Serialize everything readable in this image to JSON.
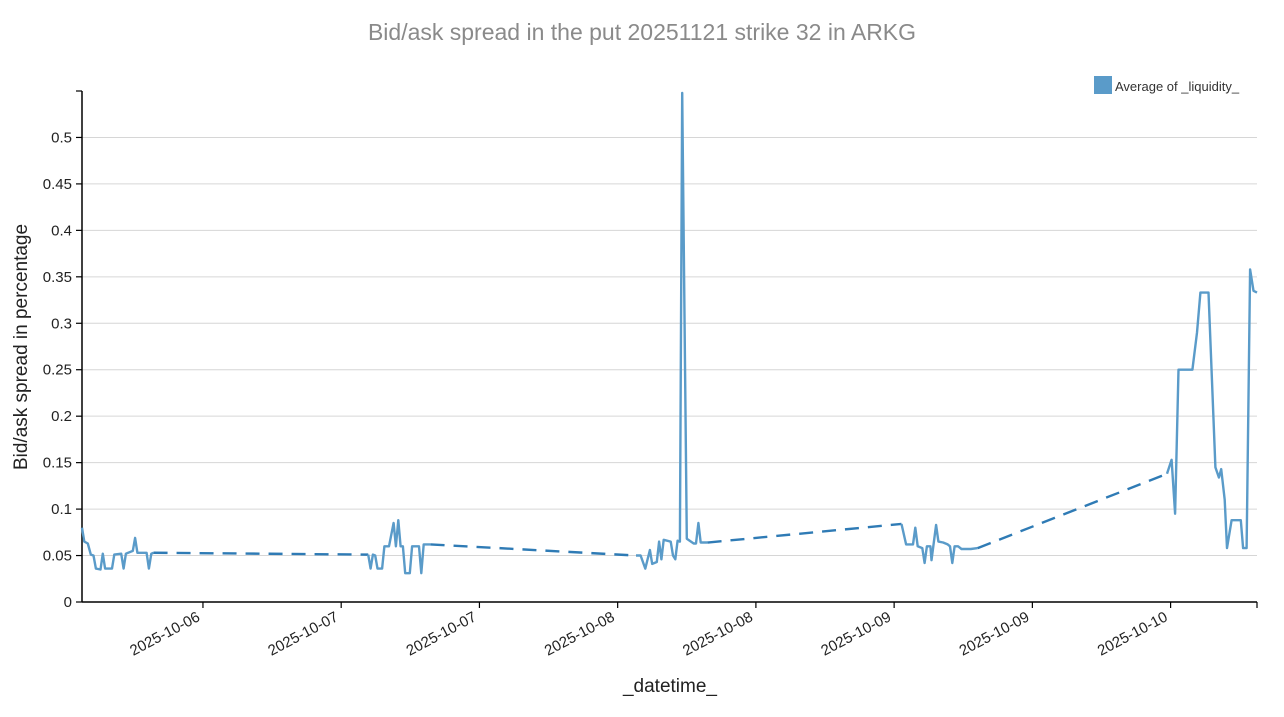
{
  "chart_data": {
    "type": "line",
    "title": "Bid/ask spread in the put 20251121 strike 32 in ARKG",
    "xlabel": "_datetime_",
    "ylabel": "Bid/ask spread in percentage",
    "x_tick_labels": [
      "2025-10-06",
      "2025-10-07",
      "2025-10-07",
      "2025-10-08",
      "2025-10-08",
      "2025-10-09",
      "2025-10-09",
      "2025-10-10"
    ],
    "y_ticks": [
      0,
      0.05,
      0.1,
      0.15,
      0.2,
      0.25,
      0.3,
      0.35,
      0.4,
      0.45,
      0.5
    ],
    "ylim": [
      0,
      0.55
    ],
    "grid": true,
    "legend_position": "top-right",
    "series": [
      {
        "name": "Average of _liquidity_",
        "color": "#5a9bc9",
        "dashed_gap_color": "#2f7bb5",
        "segments": [
          [
            [
              0.0,
              0.08
            ],
            [
              0.1,
              0.065
            ],
            [
              0.25,
              0.063
            ],
            [
              0.38,
              0.051
            ],
            [
              0.5,
              0.05
            ],
            [
              0.6,
              0.036
            ],
            [
              0.8,
              0.035
            ],
            [
              0.9,
              0.052
            ],
            [
              1.0,
              0.036
            ],
            [
              1.3,
              0.036
            ],
            [
              1.4,
              0.051
            ],
            [
              1.7,
              0.052
            ],
            [
              1.8,
              0.036
            ],
            [
              1.9,
              0.052
            ],
            [
              2.2,
              0.055
            ],
            [
              2.3,
              0.069
            ],
            [
              2.4,
              0.053
            ],
            [
              2.6,
              0.053
            ],
            [
              2.8,
              0.053
            ],
            [
              2.9,
              0.036
            ],
            [
              3.0,
              0.052
            ],
            [
              3.1,
              0.053
            ]
          ],
          [
            [
              12.4,
              0.051
            ],
            [
              12.5,
              0.036
            ],
            [
              12.6,
              0.051
            ],
            [
              12.7,
              0.05
            ],
            [
              12.8,
              0.036
            ],
            [
              13.0,
              0.036
            ],
            [
              13.1,
              0.06
            ],
            [
              13.3,
              0.06
            ],
            [
              13.5,
              0.085
            ],
            [
              13.6,
              0.06
            ],
            [
              13.7,
              0.088
            ],
            [
              13.8,
              0.06
            ],
            [
              13.9,
              0.06
            ],
            [
              14.0,
              0.031
            ],
            [
              14.2,
              0.031
            ],
            [
              14.3,
              0.06
            ],
            [
              14.6,
              0.06
            ],
            [
              14.7,
              0.031
            ],
            [
              14.8,
              0.062
            ],
            [
              15.1,
              0.062
            ]
          ],
          [
            [
              24.0,
              0.05
            ],
            [
              24.2,
              0.05
            ],
            [
              24.4,
              0.036
            ],
            [
              24.6,
              0.056
            ],
            [
              24.7,
              0.041
            ],
            [
              24.9,
              0.043
            ],
            [
              25.0,
              0.065
            ],
            [
              25.1,
              0.046
            ],
            [
              25.2,
              0.067
            ],
            [
              25.5,
              0.065
            ],
            [
              25.6,
              0.05
            ],
            [
              25.7,
              0.046
            ],
            [
              25.8,
              0.066
            ],
            [
              25.9,
              0.065
            ],
            [
              26.0,
              0.548
            ],
            [
              26.2,
              0.068
            ],
            [
              26.5,
              0.063
            ],
            [
              26.6,
              0.063
            ],
            [
              26.7,
              0.085
            ],
            [
              26.8,
              0.064
            ],
            [
              27.1,
              0.064
            ]
          ],
          [
            [
              35.5,
              0.084
            ],
            [
              35.7,
              0.062
            ],
            [
              36.0,
              0.062
            ],
            [
              36.1,
              0.08
            ],
            [
              36.2,
              0.06
            ],
            [
              36.4,
              0.058
            ],
            [
              36.5,
              0.042
            ],
            [
              36.6,
              0.06
            ],
            [
              36.75,
              0.06
            ],
            [
              36.8,
              0.045
            ],
            [
              37.0,
              0.083
            ],
            [
              37.1,
              0.065
            ],
            [
              37.3,
              0.064
            ],
            [
              37.5,
              0.062
            ],
            [
              37.6,
              0.06
            ],
            [
              37.7,
              0.042
            ],
            [
              37.8,
              0.06
            ],
            [
              37.95,
              0.06
            ],
            [
              38.1,
              0.057
            ],
            [
              38.5,
              0.057
            ],
            [
              38.8,
              0.058
            ]
          ],
          [
            [
              47.0,
              0.138
            ],
            [
              47.2,
              0.153
            ],
            [
              47.35,
              0.095
            ],
            [
              47.5,
              0.25
            ],
            [
              48.0,
              0.25
            ],
            [
              48.1,
              0.25
            ],
            [
              48.3,
              0.29
            ],
            [
              48.45,
              0.333
            ],
            [
              48.6,
              0.333
            ],
            [
              48.8,
              0.333
            ],
            [
              49.1,
              0.145
            ],
            [
              49.25,
              0.134
            ],
            [
              49.35,
              0.143
            ],
            [
              49.5,
              0.11
            ],
            [
              49.6,
              0.058
            ],
            [
              49.8,
              0.088
            ],
            [
              50.0,
              0.088
            ],
            [
              50.2,
              0.088
            ],
            [
              50.3,
              0.058
            ],
            [
              50.45,
              0.058
            ],
            [
              50.6,
              0.358
            ],
            [
              50.75,
              0.335
            ],
            [
              50.9,
              0.333
            ]
          ]
        ],
        "x_range": [
          0,
          50.9
        ]
      }
    ]
  }
}
